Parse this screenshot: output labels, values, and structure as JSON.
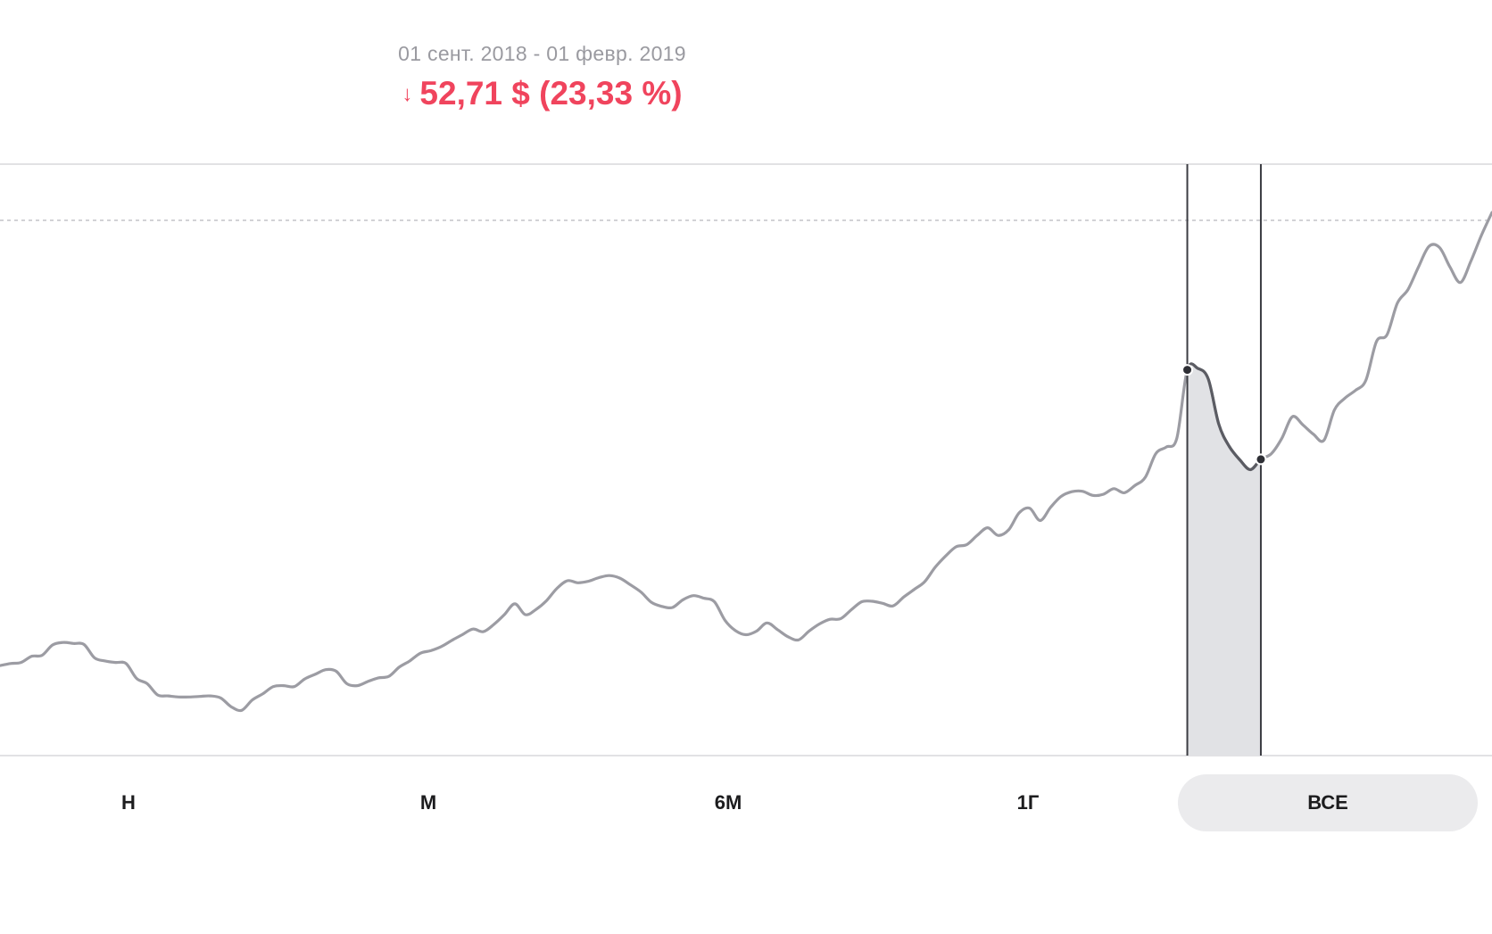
{
  "header": {
    "date_range": "01 сент. 2018 - 01 февр. 2019",
    "change_arrow": "↓",
    "change_value": "52,71 $ (23,33 %)",
    "change_color": "#f0445d"
  },
  "chart_data": {
    "type": "line",
    "y_scale": "hidden",
    "grid": false,
    "line_color": "#9c9ca3",
    "highlight_line_color": "#5b5c63",
    "highlight_fill": "#e1e2e5",
    "values": [
      62.5,
      62.9,
      63.1,
      64.3,
      64.5,
      66.5,
      67.0,
      66.8,
      66.6,
      64.0,
      63.4,
      63.1,
      62.9,
      60.0,
      59.0,
      56.8,
      56.6,
      56.4,
      56.4,
      56.5,
      56.6,
      56.2,
      54.5,
      53.8,
      55.8,
      57.0,
      58.4,
      58.6,
      58.4,
      59.9,
      60.8,
      61.7,
      61.4,
      59.0,
      58.6,
      59.4,
      60.1,
      60.4,
      62.2,
      63.4,
      64.9,
      65.4,
      66.2,
      67.4,
      68.5,
      69.6,
      69.1,
      70.5,
      72.4,
      74.5,
      72.4,
      73.4,
      75.1,
      77.5,
      79.0,
      78.6,
      78.9,
      79.6,
      80.0,
      79.5,
      78.2,
      76.8,
      74.8,
      74.0,
      73.8,
      75.3,
      76.1,
      75.6,
      74.9,
      71.3,
      69.3,
      68.5,
      69.2,
      70.8,
      69.5,
      68.1,
      67.5,
      69.2,
      70.6,
      71.5,
      71.6,
      73.3,
      74.9,
      75.0,
      74.6,
      74.1,
      75.8,
      77.3,
      78.8,
      81.6,
      83.8,
      85.6,
      86.0,
      87.8,
      89.3,
      87.8,
      88.9,
      92.2,
      93.1,
      90.7,
      93.3,
      95.4,
      96.3,
      96.4,
      95.6,
      95.8,
      96.9,
      96.1,
      97.5,
      99.1,
      103.7,
      105.0,
      106.7,
      120.0,
      120.3,
      118.2,
      109.4,
      105.1,
      102.5,
      100.6,
      102.6,
      103.7,
      106.7,
      110.9,
      109.3,
      107.5,
      106.3,
      112.2,
      114.5,
      116.0,
      118.0,
      125.5,
      126.8,
      133.0,
      135.6,
      140.0,
      144.0,
      143.8,
      140.0,
      137.0,
      141.2,
      146.2,
      150.6
    ]
  },
  "selection": {
    "start_index": 113,
    "end_index": 120
  },
  "periods": [
    {
      "label": "Н",
      "selected": false
    },
    {
      "label": "М",
      "selected": false
    },
    {
      "label": "6М",
      "selected": false
    },
    {
      "label": "1Г",
      "selected": false
    },
    {
      "label": "ВСЕ",
      "selected": true
    }
  ]
}
